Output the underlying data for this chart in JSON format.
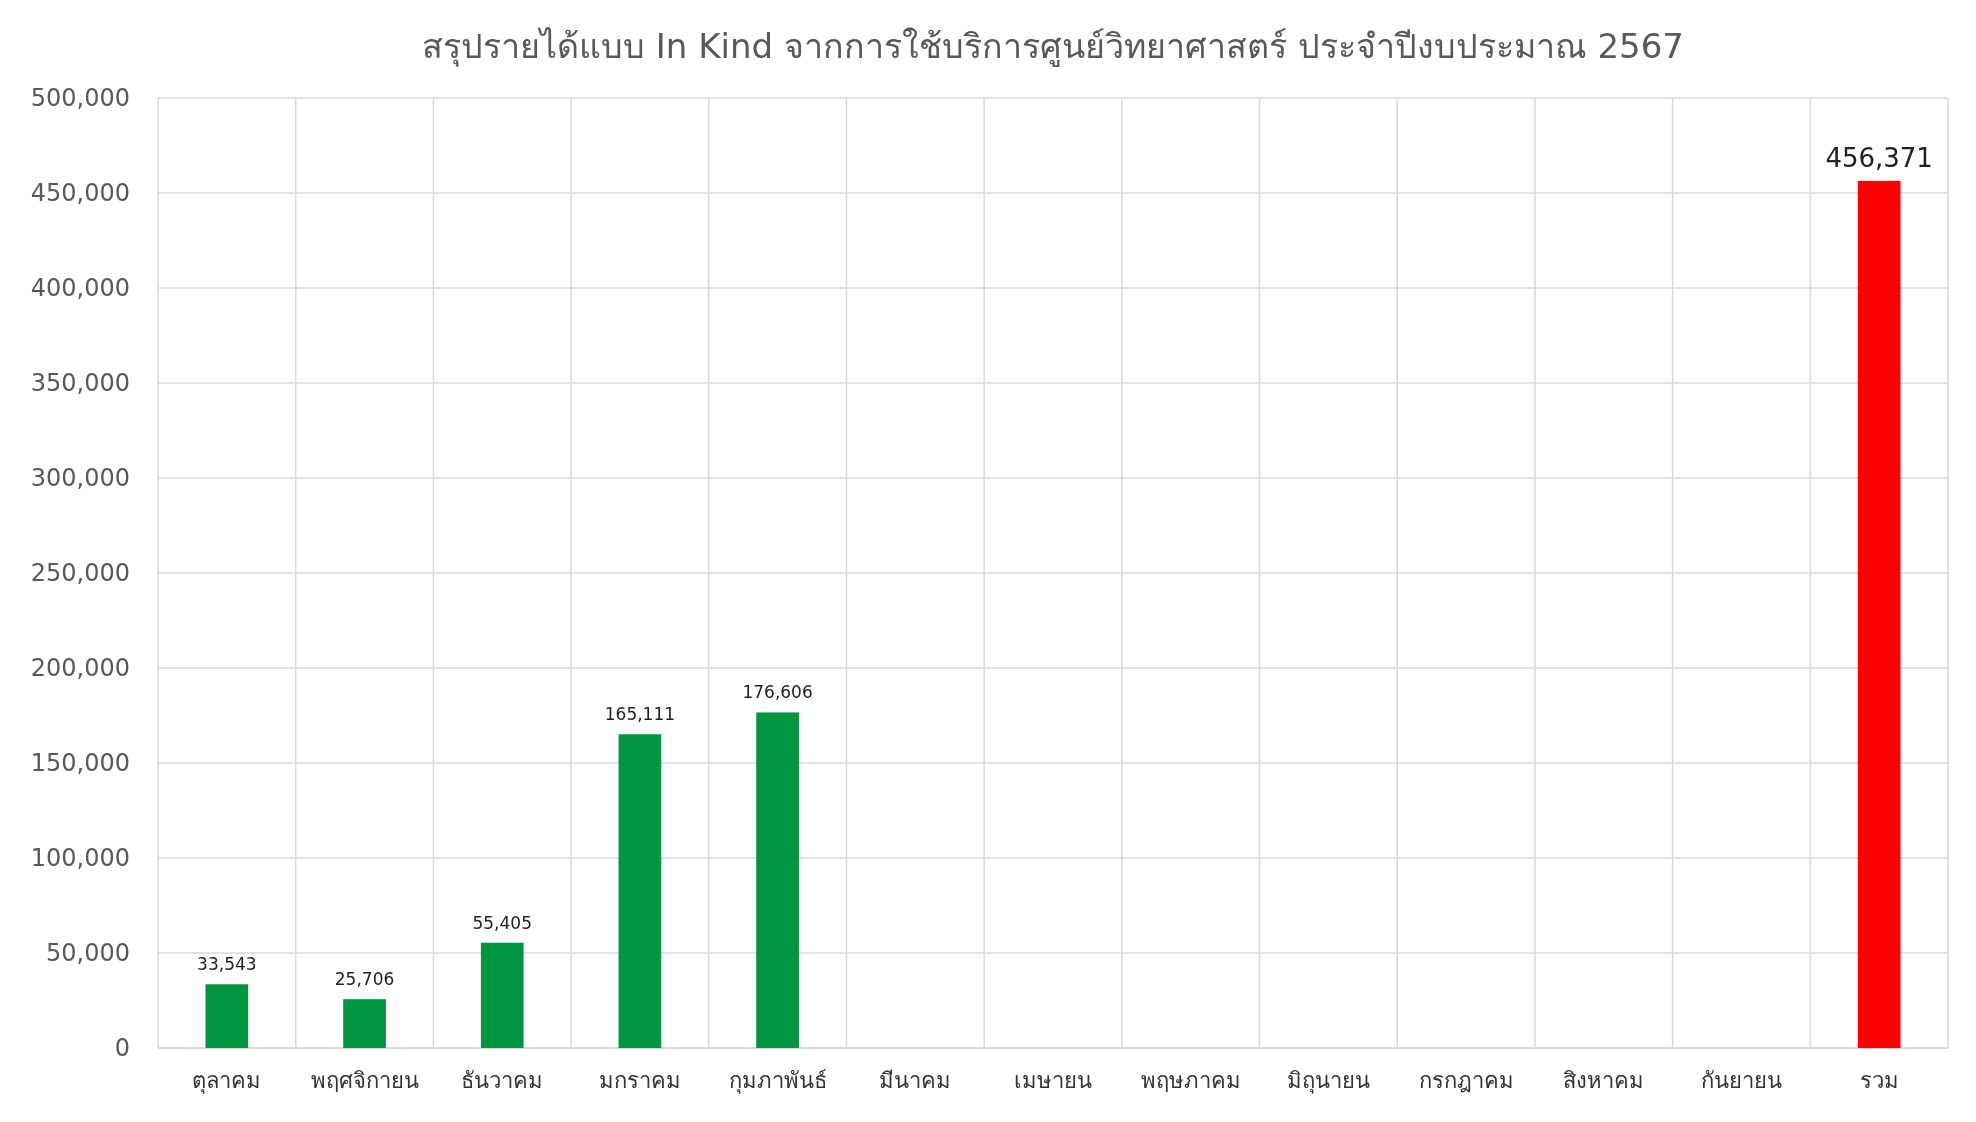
{
  "chart_data": {
    "type": "bar",
    "title": "สรุปรายได้แบบ In Kind จากการใช้บริการศูนย์วิทยาศาสตร์  ประจำปีงบประมาณ 2567",
    "categories": [
      "ตุลาคม",
      "พฤศจิกายน",
      "ธันวาคม",
      "มกราคม",
      "กุมภาพันธ์",
      "มีนาคม",
      "เมษายน",
      "พฤษภาคม",
      "มิถุนายน",
      "กรกฎาคม",
      "สิงหาคม",
      "กันยายน",
      "รวม"
    ],
    "values": [
      33543,
      25706,
      55405,
      165111,
      176606,
      null,
      null,
      null,
      null,
      null,
      null,
      null,
      456371
    ],
    "colors": [
      "#009640",
      "#009640",
      "#009640",
      "#009640",
      "#009640",
      null,
      null,
      null,
      null,
      null,
      null,
      null,
      "#ff0000"
    ],
    "value_labels": [
      "33,543",
      "25,706",
      "55,405",
      "165,111",
      "176,606",
      null,
      null,
      null,
      null,
      null,
      null,
      null,
      "456,371"
    ],
    "ylim": [
      0,
      500000
    ],
    "yticks": [
      {
        "value": 0,
        "label": "0"
      },
      {
        "value": 50000,
        "label": "50,000"
      },
      {
        "value": 100000,
        "label": "100,000"
      },
      {
        "value": 150000,
        "label": "150,000"
      },
      {
        "value": 200000,
        "label": "200,000"
      },
      {
        "value": 250000,
        "label": "250,000"
      },
      {
        "value": 300000,
        "label": "300,000"
      },
      {
        "value": 350000,
        "label": "350,000"
      },
      {
        "value": 400000,
        "label": "400,000"
      },
      {
        "value": 450000,
        "label": "450,000"
      },
      {
        "value": 500000,
        "label": "500,000"
      }
    ],
    "grid": true
  }
}
